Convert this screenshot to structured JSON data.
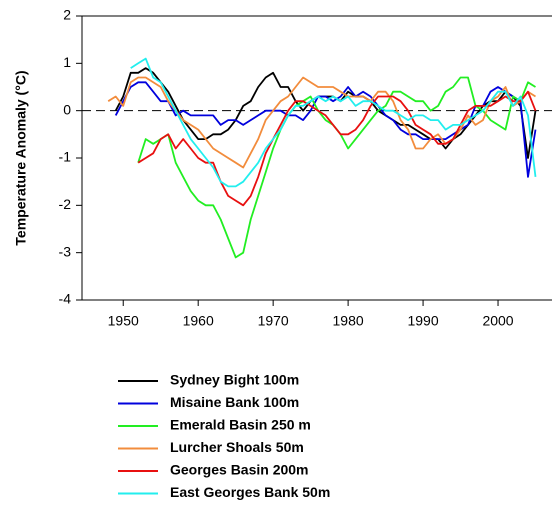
{
  "chart_data": {
    "type": "line",
    "y_label": "Temperature Anomaly (°C)",
    "xlim": [
      1944.5,
      2007.2
    ],
    "ylim": [
      -4,
      2
    ],
    "xticks": [
      1950,
      1960,
      1970,
      1980,
      1990,
      2000
    ],
    "yticks": [
      -4,
      -3,
      -2,
      -1,
      0,
      1,
      2
    ],
    "zero_line": true,
    "x": [
      1948,
      1949,
      1950,
      1951,
      1952,
      1953,
      1954,
      1955,
      1956,
      1957,
      1958,
      1959,
      1960,
      1961,
      1962,
      1963,
      1964,
      1965,
      1966,
      1967,
      1968,
      1969,
      1970,
      1971,
      1972,
      1973,
      1974,
      1975,
      1976,
      1977,
      1978,
      1979,
      1980,
      1981,
      1982,
      1983,
      1984,
      1985,
      1986,
      1987,
      1988,
      1989,
      1990,
      1991,
      1992,
      1993,
      1994,
      1995,
      1996,
      1997,
      1998,
      1999,
      2000,
      2001,
      2002,
      2003,
      2004,
      2005
    ],
    "series": [
      {
        "name": "Sydney Bight 100m",
        "color": "#000000",
        "values": [
          null,
          0.0,
          0.3,
          0.8,
          0.8,
          0.9,
          0.8,
          0.6,
          0.4,
          0.1,
          -0.2,
          -0.4,
          -0.6,
          -0.6,
          -0.5,
          -0.5,
          -0.4,
          -0.2,
          0.1,
          0.2,
          0.5,
          0.7,
          0.8,
          0.5,
          0.5,
          0.2,
          0.0,
          0.2,
          0.3,
          0.3,
          0.3,
          0.2,
          0.4,
          0.3,
          0.3,
          0.2,
          0.0,
          -0.1,
          -0.2,
          -0.3,
          -0.3,
          -0.4,
          -0.5,
          -0.6,
          -0.6,
          -0.8,
          -0.6,
          -0.5,
          -0.3,
          -0.1,
          0.1,
          0.2,
          0.2,
          0.4,
          0.3,
          0.1,
          -1.0,
          0.0
        ]
      },
      {
        "name": "Misaine Bank 100m",
        "color": "#0000dd",
        "values": [
          null,
          -0.1,
          0.2,
          0.5,
          0.6,
          0.6,
          0.4,
          0.2,
          0.2,
          -0.1,
          0.0,
          -0.1,
          -0.1,
          -0.1,
          -0.1,
          -0.3,
          -0.2,
          -0.2,
          -0.3,
          -0.2,
          -0.1,
          0.0,
          0.0,
          0.0,
          -0.1,
          -0.1,
          -0.2,
          0.0,
          0.3,
          0.3,
          0.2,
          0.3,
          0.5,
          0.3,
          0.4,
          0.3,
          0.1,
          -0.1,
          -0.2,
          -0.4,
          -0.5,
          -0.5,
          -0.6,
          -0.6,
          -0.6,
          -0.6,
          -0.5,
          -0.4,
          -0.3,
          0.1,
          0.1,
          0.4,
          0.5,
          0.4,
          0.3,
          0.2,
          -1.4,
          -0.4
        ]
      },
      {
        "name": "Emerald Basin 250 m",
        "color": "#22ee22",
        "values": [
          null,
          null,
          null,
          null,
          -1.1,
          -0.6,
          -0.7,
          -0.6,
          -0.5,
          -1.1,
          -1.4,
          -1.7,
          -1.9,
          -2.0,
          -2.0,
          -2.3,
          -2.7,
          -3.1,
          -3.0,
          -2.3,
          -1.8,
          -1.3,
          -0.8,
          -0.4,
          -0.1,
          0.1,
          0.2,
          0.3,
          0.0,
          -0.2,
          -0.3,
          -0.5,
          -0.8,
          -0.6,
          -0.4,
          -0.2,
          0.0,
          0.1,
          0.4,
          0.4,
          0.3,
          0.2,
          0.2,
          0.0,
          0.1,
          0.4,
          0.5,
          0.7,
          0.7,
          0.1,
          0.0,
          -0.2,
          -0.3,
          -0.4,
          0.3,
          0.2,
          0.6,
          0.5
        ]
      },
      {
        "name": "Lurcher Shoals 50m",
        "color": "#f28c3c",
        "values": [
          0.2,
          0.3,
          0.1,
          0.6,
          0.7,
          0.7,
          0.6,
          0.5,
          0.2,
          0.0,
          -0.2,
          -0.3,
          -0.4,
          -0.6,
          -0.8,
          -0.9,
          -1.0,
          -1.1,
          -1.2,
          -0.9,
          -0.6,
          -0.2,
          0.0,
          0.2,
          0.3,
          0.5,
          0.7,
          0.6,
          0.5,
          0.5,
          0.5,
          0.4,
          0.3,
          0.3,
          0.3,
          0.2,
          0.4,
          0.4,
          0.2,
          -0.2,
          -0.4,
          -0.8,
          -0.8,
          -0.6,
          -0.5,
          -0.7,
          -0.6,
          -0.4,
          -0.1,
          -0.3,
          -0.2,
          0.2,
          0.3,
          0.5,
          0.1,
          0.2,
          0.4,
          0.3
        ]
      },
      {
        "name": "Georges Basin 200m",
        "color": "#e81010",
        "values": [
          null,
          null,
          null,
          null,
          -1.1,
          -1.0,
          -0.9,
          -0.6,
          -0.5,
          -0.8,
          -0.6,
          -0.8,
          -1.0,
          -1.1,
          -1.1,
          -1.5,
          -1.8,
          -1.9,
          -2.0,
          -1.8,
          -1.4,
          -0.9,
          -0.6,
          -0.3,
          0.0,
          0.2,
          0.2,
          0.1,
          0.0,
          -0.1,
          -0.3,
          -0.5,
          -0.5,
          -0.4,
          -0.2,
          0.1,
          0.3,
          0.3,
          0.3,
          0.2,
          0.0,
          -0.3,
          -0.4,
          -0.5,
          -0.7,
          -0.7,
          -0.6,
          -0.3,
          0.0,
          0.1,
          0.1,
          0.1,
          0.2,
          0.3,
          0.2,
          0.2,
          0.4,
          0.0
        ]
      },
      {
        "name": "East Georges Bank 50m",
        "color": "#22eeee",
        "values": [
          null,
          null,
          null,
          0.9,
          1.0,
          1.1,
          0.7,
          0.6,
          0.3,
          0.0,
          -0.3,
          -0.6,
          -0.8,
          -1.0,
          -1.2,
          -1.5,
          -1.6,
          -1.6,
          -1.5,
          -1.3,
          -1.1,
          -0.8,
          -0.6,
          -0.4,
          -0.1,
          0.1,
          0.1,
          0.2,
          0.3,
          0.2,
          0.3,
          0.2,
          0.3,
          0.1,
          0.2,
          0.2,
          0.1,
          0.0,
          0.0,
          -0.1,
          -0.2,
          -0.1,
          -0.1,
          -0.2,
          -0.2,
          -0.4,
          -0.3,
          -0.3,
          -0.2,
          -0.1,
          0.0,
          0.2,
          0.4,
          0.4,
          0.1,
          0.3,
          -0.1,
          -1.4
        ]
      }
    ]
  }
}
